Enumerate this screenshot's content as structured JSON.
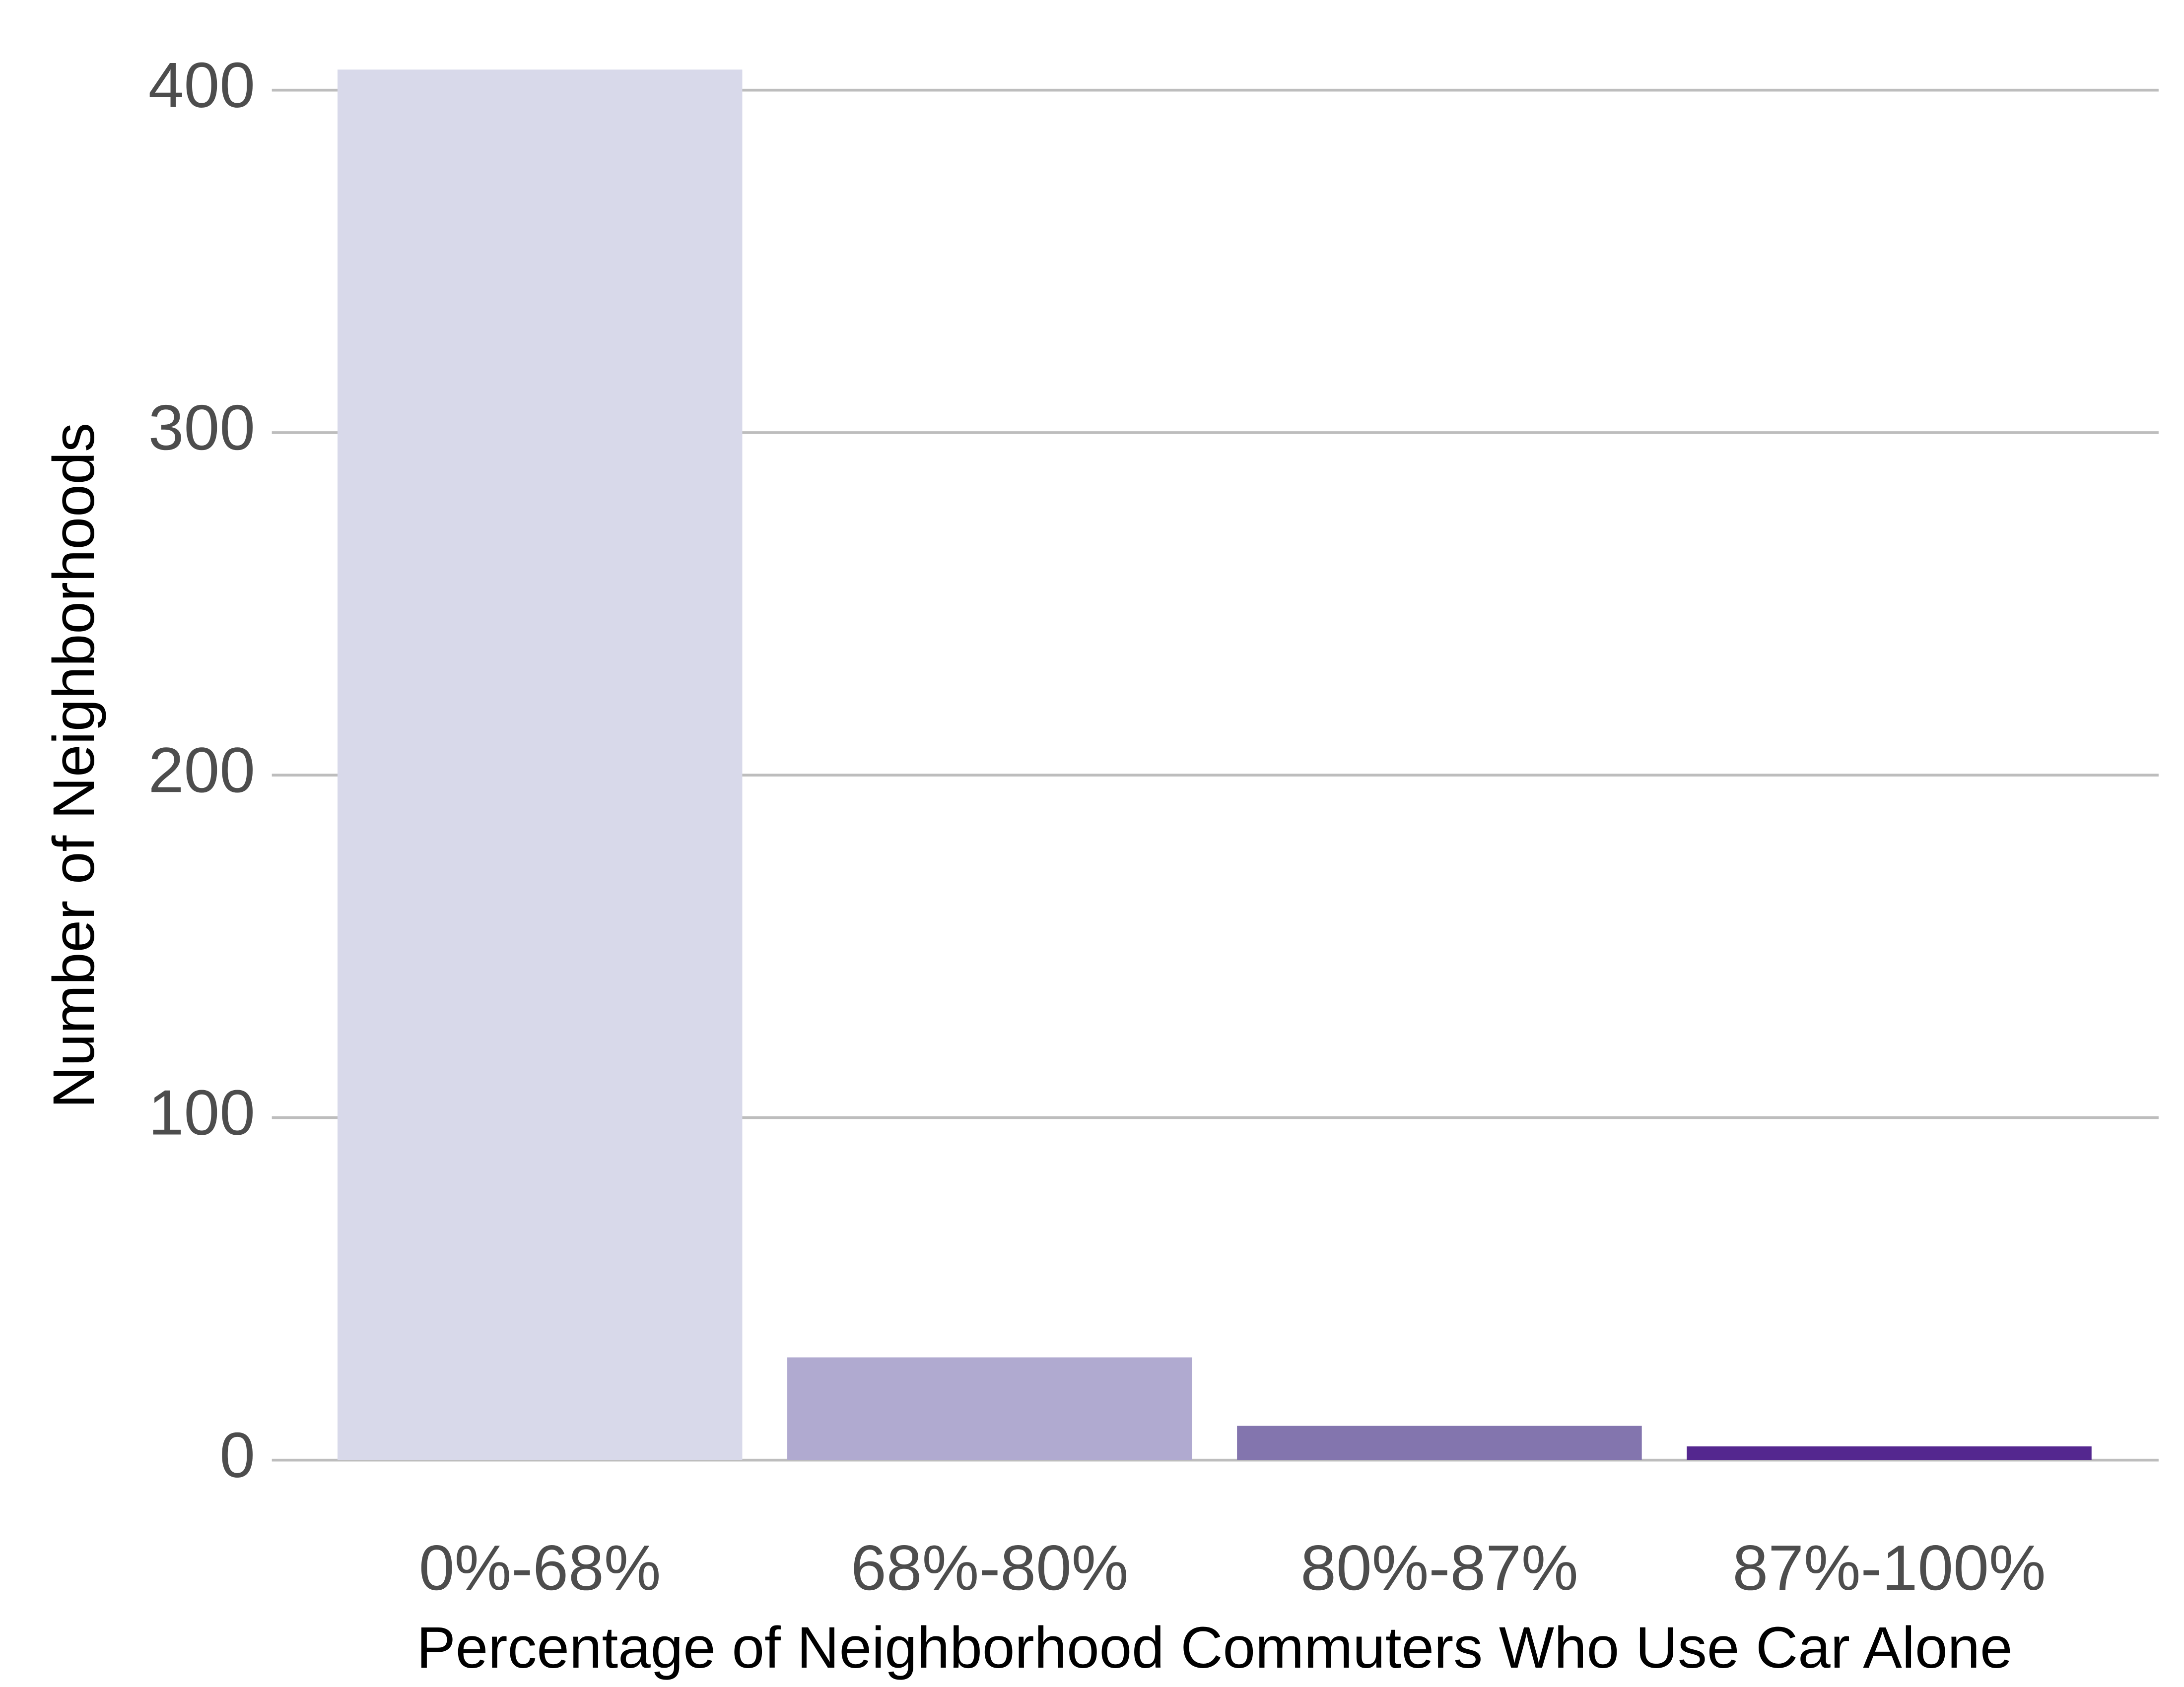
{
  "chart_data": {
    "type": "bar",
    "categories": [
      "0%-68%",
      "68%-80%",
      "80%-87%",
      "87%-100%"
    ],
    "values": [
      406,
      30,
      10,
      4
    ],
    "colors": [
      "#d8d9ea",
      "#b0aad0",
      "#8375ae",
      "#54278f"
    ],
    "xlabel": "Percentage of Neighborhood Commuters Who Use Car Alone",
    "ylabel": "Number of Neighborhoods",
    "ylim": [
      0,
      406
    ],
    "yticks": [
      0,
      100,
      200,
      300,
      400
    ],
    "grid": true
  }
}
